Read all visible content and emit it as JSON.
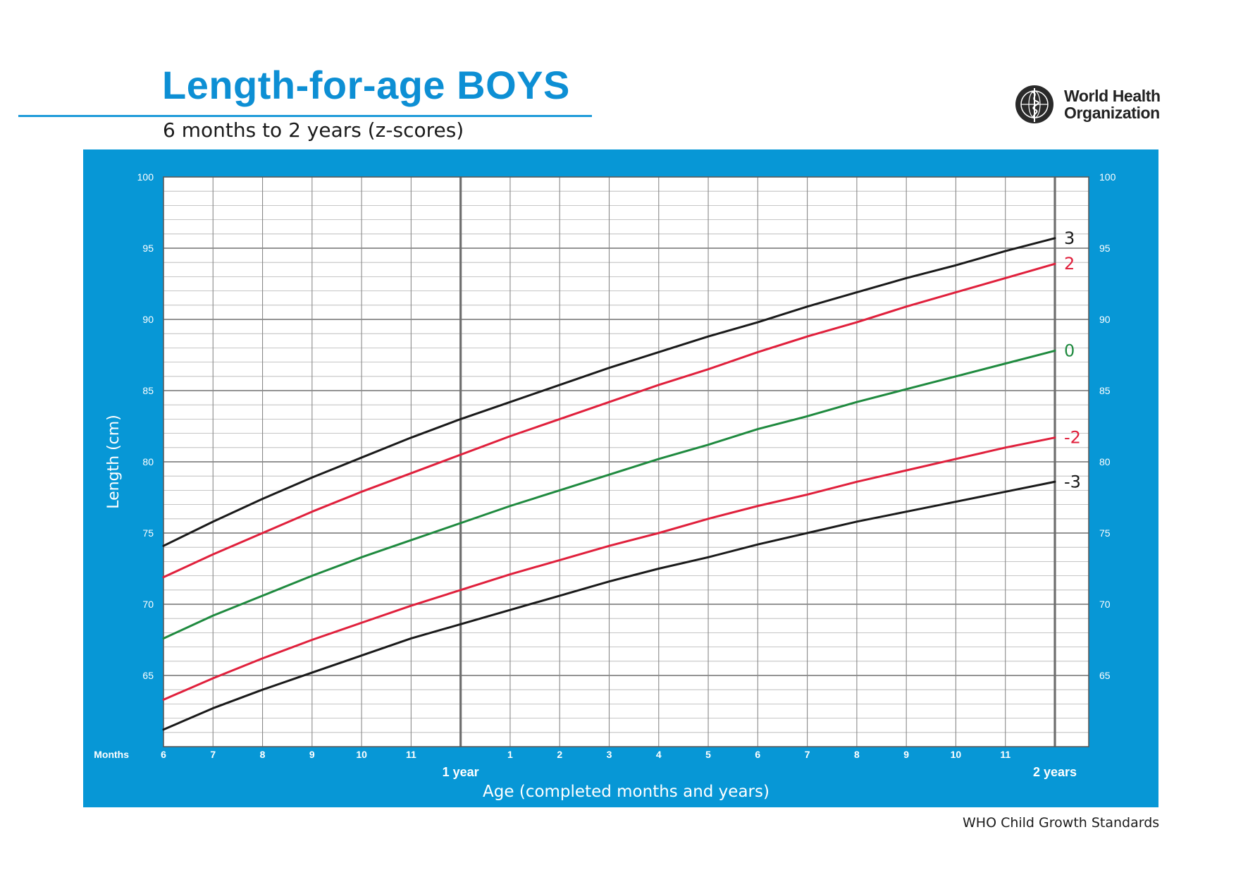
{
  "header": {
    "title": "Length-for-age BOYS",
    "subtitle": "6 months to 2 years (z-scores)",
    "organization_line1": "World Health",
    "organization_line2": "Organization"
  },
  "footer": {
    "text": "WHO Child Growth Standards"
  },
  "colors": {
    "panel_blue": "#0797d6",
    "grid": "#8c8c8c",
    "zscore_3": "#1a1a1a",
    "zscore_2": "#e0203c",
    "zscore_0": "#1f8a3f"
  },
  "chart_data": {
    "type": "line",
    "ylabel": "Length (cm)",
    "xlabel": "Age (completed months and years)",
    "months_label": "Months",
    "year_markers": [
      {
        "label": "1 year",
        "x": 12
      },
      {
        "label": "2 years",
        "x": 24
      }
    ],
    "xlim": [
      6,
      24
    ],
    "ylim": [
      60,
      100
    ],
    "x_ticks": [
      {
        "x": 6,
        "label": "6"
      },
      {
        "x": 7,
        "label": "7"
      },
      {
        "x": 8,
        "label": "8"
      },
      {
        "x": 9,
        "label": "9"
      },
      {
        "x": 10,
        "label": "10"
      },
      {
        "x": 11,
        "label": "11"
      },
      {
        "x": 13,
        "label": "1"
      },
      {
        "x": 14,
        "label": "2"
      },
      {
        "x": 15,
        "label": "3"
      },
      {
        "x": 16,
        "label": "4"
      },
      {
        "x": 17,
        "label": "5"
      },
      {
        "x": 18,
        "label": "6"
      },
      {
        "x": 19,
        "label": "7"
      },
      {
        "x": 20,
        "label": "8"
      },
      {
        "x": 21,
        "label": "9"
      },
      {
        "x": 22,
        "label": "10"
      },
      {
        "x": 23,
        "label": "11"
      }
    ],
    "y_ticks": [
      65,
      70,
      75,
      80,
      85,
      90,
      95,
      100
    ],
    "grid": true,
    "x": [
      6,
      7,
      8,
      9,
      10,
      11,
      12,
      13,
      14,
      15,
      16,
      17,
      18,
      19,
      20,
      21,
      22,
      23,
      24
    ],
    "series": [
      {
        "name": "3",
        "color": "#1a1a1a",
        "values": [
          74.1,
          75.8,
          77.4,
          78.9,
          80.3,
          81.7,
          83.0,
          84.2,
          85.4,
          86.6,
          87.7,
          88.8,
          89.8,
          90.9,
          91.9,
          92.9,
          93.8,
          94.8,
          95.7
        ]
      },
      {
        "name": "2",
        "color": "#e0203c",
        "values": [
          71.9,
          73.5,
          75.0,
          76.5,
          77.9,
          79.2,
          80.5,
          81.8,
          83.0,
          84.2,
          85.4,
          86.5,
          87.7,
          88.8,
          89.8,
          90.9,
          91.9,
          92.9,
          93.9
        ]
      },
      {
        "name": "0",
        "color": "#1f8a3f",
        "values": [
          67.6,
          69.2,
          70.6,
          72.0,
          73.3,
          74.5,
          75.7,
          76.9,
          78.0,
          79.1,
          80.2,
          81.2,
          82.3,
          83.2,
          84.2,
          85.1,
          86.0,
          86.9,
          87.8
        ]
      },
      {
        "name": "-2",
        "color": "#e0203c",
        "values": [
          63.3,
          64.8,
          66.2,
          67.5,
          68.7,
          69.9,
          71.0,
          72.1,
          73.1,
          74.1,
          75.0,
          76.0,
          76.9,
          77.7,
          78.6,
          79.4,
          80.2,
          81.0,
          81.7
        ]
      },
      {
        "name": "-3",
        "color": "#1a1a1a",
        "values": [
          61.2,
          62.7,
          64.0,
          65.2,
          66.4,
          67.6,
          68.6,
          69.6,
          70.6,
          71.6,
          72.5,
          73.3,
          74.2,
          75.0,
          75.8,
          76.5,
          77.2,
          77.9,
          78.6
        ]
      }
    ]
  }
}
